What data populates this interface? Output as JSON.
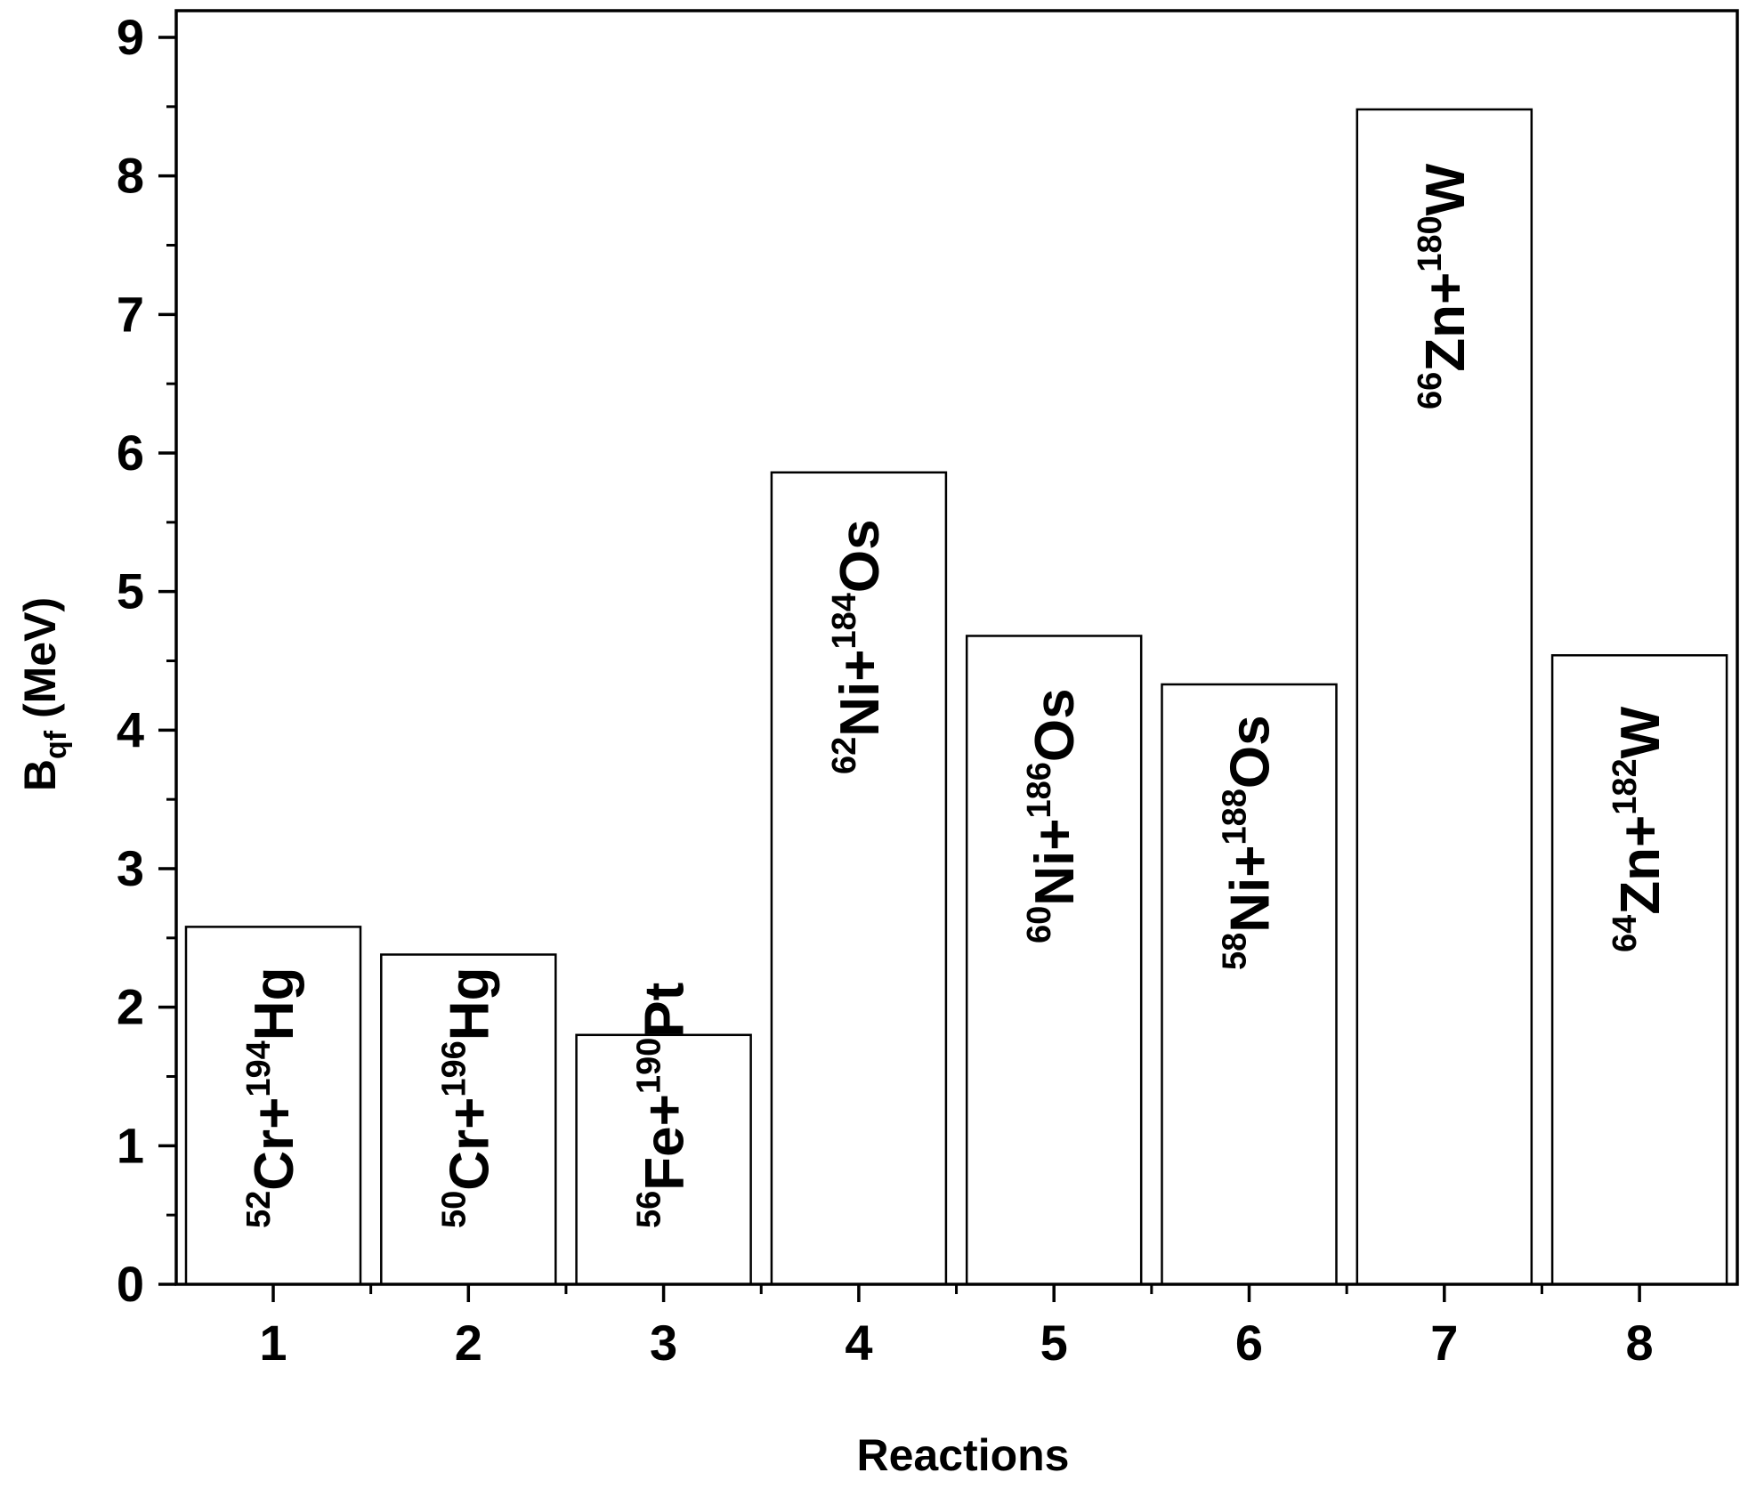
{
  "chart_data": {
    "type": "bar",
    "title": "",
    "xlabel": "Reactions",
    "ylabel": {
      "main": "B",
      "sub": "qf",
      "rest": " (MeV)"
    },
    "ylim": [
      0,
      9
    ],
    "yticks": [
      0,
      1,
      2,
      3,
      4,
      5,
      6,
      7,
      8,
      9
    ],
    "grid": false,
    "categories": [
      "1",
      "2",
      "3",
      "4",
      "5",
      "6",
      "7",
      "8"
    ],
    "values": [
      2.58,
      2.38,
      1.8,
      5.86,
      4.68,
      4.33,
      8.48,
      4.54
    ],
    "bar_labels": [
      {
        "a1": "52",
        "e1": "Cr+",
        "a2": "194",
        "e2": "Hg"
      },
      {
        "a1": "50",
        "e1": "Cr+",
        "a2": "196",
        "e2": "Hg"
      },
      {
        "a1": "56",
        "e1": "Fe+",
        "a2": "190",
        "e2": "Pt"
      },
      {
        "a1": "62",
        "e1": "Ni+",
        "a2": "184",
        "e2": "Os"
      },
      {
        "a1": "60",
        "e1": "Ni+",
        "a2": "186",
        "e2": "Os"
      },
      {
        "a1": "58",
        "e1": "Ni+",
        "a2": "188",
        "e2": "Os"
      },
      {
        "a1": "66",
        "e1": "Zn+",
        "a2": "180",
        "e2": "W"
      },
      {
        "a1": "64",
        "e1": "Zn+",
        "a2": "182",
        "e2": "W"
      }
    ],
    "colors": {
      "bar_fill": "#ffffff",
      "bar_stroke": "#000000",
      "axis": "#000000"
    }
  }
}
